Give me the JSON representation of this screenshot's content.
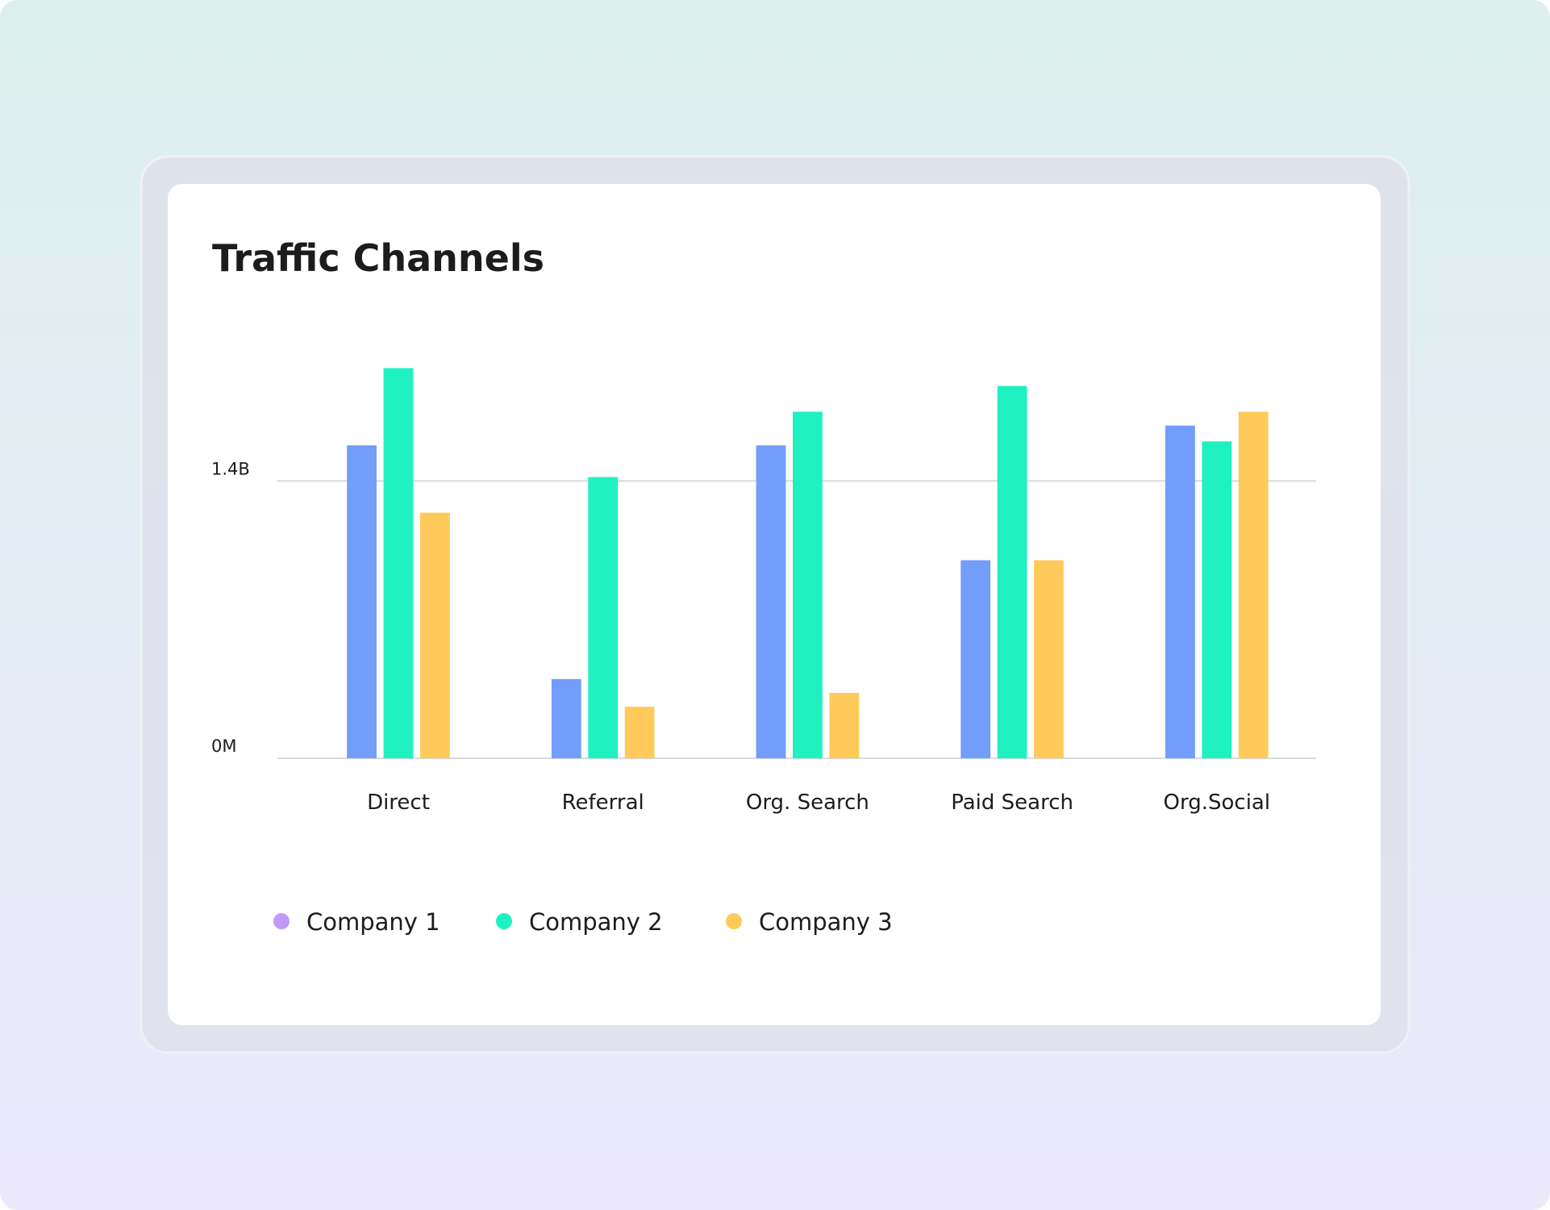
{
  "chart_data": {
    "type": "bar",
    "title": "Traffic Channels",
    "categories": [
      "Direct",
      "Referral",
      "Org. Search",
      "Paid Search",
      "Org.Social"
    ],
    "series": [
      {
        "name": "Company 1",
        "color": "#729dfb",
        "legend_color": "#c09af8",
        "values": [
          1580000000,
          400000000,
          1580000000,
          1000000000,
          1680000000
        ]
      },
      {
        "name": "Company 2",
        "color": "#1ff2c0",
        "legend_color": "#1ff2c0",
        "values": [
          1970000000,
          1420000000,
          1750000000,
          1880000000,
          1600000000
        ]
      },
      {
        "name": "Company 3",
        "color": "#ffca5a",
        "legend_color": "#ffca5a",
        "values": [
          1240000000,
          260000000,
          330000000,
          1000000000,
          1750000000
        ]
      }
    ],
    "ylim": [
      0,
      2000000000
    ],
    "yticks": [
      {
        "value": 0,
        "label": "0M"
      },
      {
        "value": 1400000000,
        "label": "1.4B"
      }
    ],
    "grid": true
  }
}
